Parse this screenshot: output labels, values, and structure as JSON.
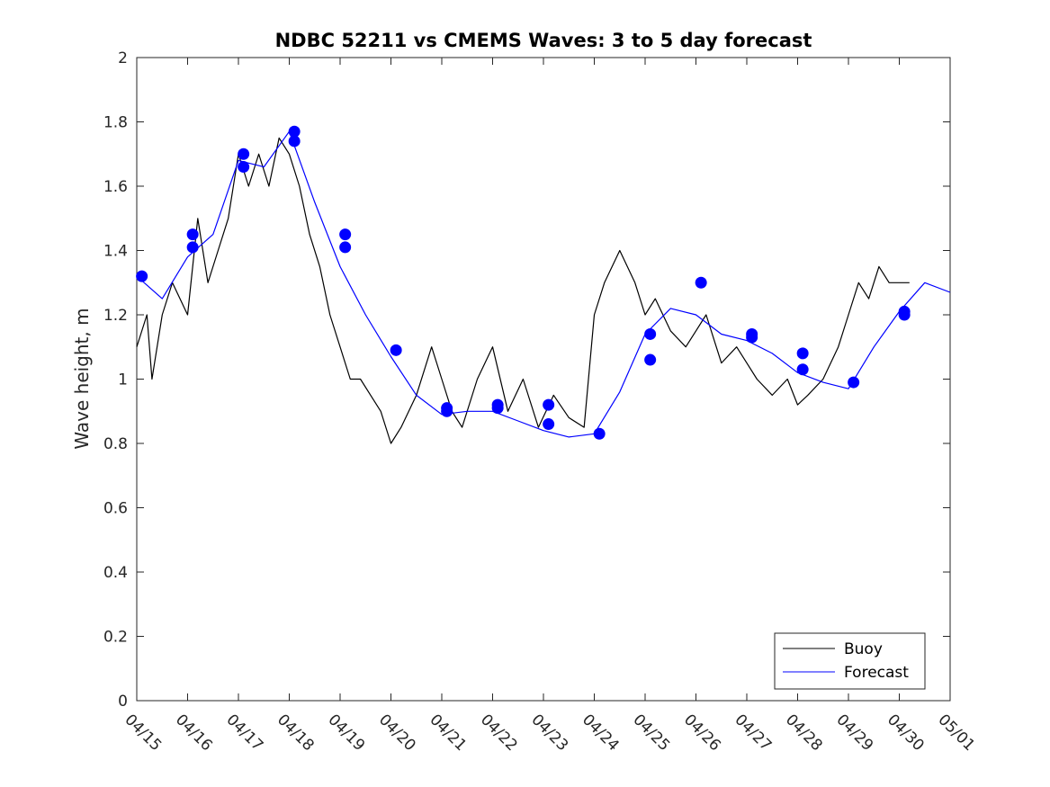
{
  "chart_data": {
    "type": "line",
    "title": "NDBC 52211 vs CMEMS Waves: 3 to 5 day forecast",
    "xlabel": "",
    "ylabel": "Wave height, m",
    "xlim": [
      "04/15",
      "05/01"
    ],
    "ylim": [
      0,
      2
    ],
    "x_ticks": [
      "04/15",
      "04/16",
      "04/17",
      "04/18",
      "04/19",
      "04/20",
      "04/21",
      "04/22",
      "04/23",
      "04/24",
      "04/25",
      "04/26",
      "04/27",
      "04/28",
      "04/29",
      "04/30",
      "05/01"
    ],
    "y_ticks": [
      "0",
      "0.2",
      "0.4",
      "0.6",
      "0.8",
      "1",
      "1.2",
      "1.4",
      "1.6",
      "1.8",
      "2"
    ],
    "grid": false,
    "legend_position": "bottom-right",
    "series": [
      {
        "name": "Buoy",
        "color": "#000000",
        "x_days": [
          0.0,
          0.2,
          0.3,
          0.5,
          0.7,
          1.0,
          1.2,
          1.4,
          1.6,
          1.8,
          2.0,
          2.2,
          2.4,
          2.6,
          2.8,
          3.0,
          3.2,
          3.4,
          3.6,
          3.8,
          4.0,
          4.2,
          4.4,
          4.6,
          4.8,
          5.0,
          5.2,
          5.5,
          5.8,
          6.0,
          6.2,
          6.4,
          6.7,
          7.0,
          7.3,
          7.6,
          7.9,
          8.2,
          8.5,
          8.8,
          9.0,
          9.2,
          9.5,
          9.8,
          10.0,
          10.2,
          10.5,
          10.8,
          11.0,
          11.2,
          11.5,
          11.8,
          12.0,
          12.2,
          12.5,
          12.8,
          13.0,
          13.2,
          13.5,
          13.8,
          14.0,
          14.2,
          14.4,
          14.6,
          14.8,
          15.0,
          15.2
        ],
        "values": [
          1.1,
          1.2,
          1.0,
          1.2,
          1.3,
          1.2,
          1.5,
          1.3,
          1.4,
          1.5,
          1.7,
          1.6,
          1.7,
          1.6,
          1.75,
          1.7,
          1.6,
          1.45,
          1.35,
          1.2,
          1.1,
          1.0,
          1.0,
          0.95,
          0.9,
          0.8,
          0.85,
          0.95,
          1.1,
          1.0,
          0.9,
          0.85,
          1.0,
          1.1,
          0.9,
          1.0,
          0.85,
          0.95,
          0.88,
          0.85,
          1.2,
          1.3,
          1.4,
          1.3,
          1.2,
          1.25,
          1.15,
          1.1,
          1.15,
          1.2,
          1.05,
          1.1,
          1.05,
          1.0,
          0.95,
          1.0,
          0.92,
          0.95,
          1.0,
          1.1,
          1.2,
          1.3,
          1.25,
          1.35,
          1.3,
          1.3,
          1.3
        ]
      },
      {
        "name": "Forecast",
        "color": "#0000ff",
        "x_days": [
          0.0,
          0.5,
          1.0,
          1.5,
          2.0,
          2.5,
          3.0,
          3.5,
          4.0,
          4.5,
          5.0,
          5.5,
          6.0,
          6.5,
          7.0,
          7.5,
          8.0,
          8.5,
          9.0,
          9.5,
          10.0,
          10.5,
          11.0,
          11.5,
          12.0,
          12.5,
          13.0,
          13.5,
          14.0,
          14.5,
          15.0,
          15.5,
          16.0
        ],
        "values": [
          1.32,
          1.25,
          1.38,
          1.45,
          1.68,
          1.66,
          1.77,
          1.55,
          1.35,
          1.2,
          1.07,
          0.95,
          0.89,
          0.9,
          0.9,
          0.87,
          0.84,
          0.82,
          0.83,
          0.96,
          1.14,
          1.22,
          1.2,
          1.14,
          1.12,
          1.08,
          1.02,
          0.99,
          0.97,
          1.1,
          1.21,
          1.3,
          1.27
        ]
      }
    ],
    "markers": {
      "color": "#0000ff",
      "points": [
        {
          "x_days": 0.1,
          "value": 1.32
        },
        {
          "x_days": 1.1,
          "value": 1.45
        },
        {
          "x_days": 1.1,
          "value": 1.41
        },
        {
          "x_days": 2.1,
          "value": 1.7
        },
        {
          "x_days": 2.1,
          "value": 1.66
        },
        {
          "x_days": 3.1,
          "value": 1.77
        },
        {
          "x_days": 3.1,
          "value": 1.74
        },
        {
          "x_days": 4.1,
          "value": 1.45
        },
        {
          "x_days": 4.1,
          "value": 1.41
        },
        {
          "x_days": 5.1,
          "value": 1.09
        },
        {
          "x_days": 6.1,
          "value": 0.91
        },
        {
          "x_days": 6.1,
          "value": 0.9
        },
        {
          "x_days": 7.1,
          "value": 0.92
        },
        {
          "x_days": 7.1,
          "value": 0.91
        },
        {
          "x_days": 8.1,
          "value": 0.92
        },
        {
          "x_days": 8.1,
          "value": 0.86
        },
        {
          "x_days": 9.1,
          "value": 0.83
        },
        {
          "x_days": 10.1,
          "value": 1.14
        },
        {
          "x_days": 10.1,
          "value": 1.06
        },
        {
          "x_days": 11.1,
          "value": 1.3
        },
        {
          "x_days": 12.1,
          "value": 1.14
        },
        {
          "x_days": 12.1,
          "value": 1.13
        },
        {
          "x_days": 13.1,
          "value": 1.08
        },
        {
          "x_days": 13.1,
          "value": 1.03
        },
        {
          "x_days": 14.1,
          "value": 0.99
        },
        {
          "x_days": 15.1,
          "value": 1.21
        },
        {
          "x_days": 15.1,
          "value": 1.2
        }
      ]
    },
    "legend": [
      {
        "label": "Buoy",
        "color": "#000000"
      },
      {
        "label": "Forecast",
        "color": "#0000ff"
      }
    ]
  }
}
